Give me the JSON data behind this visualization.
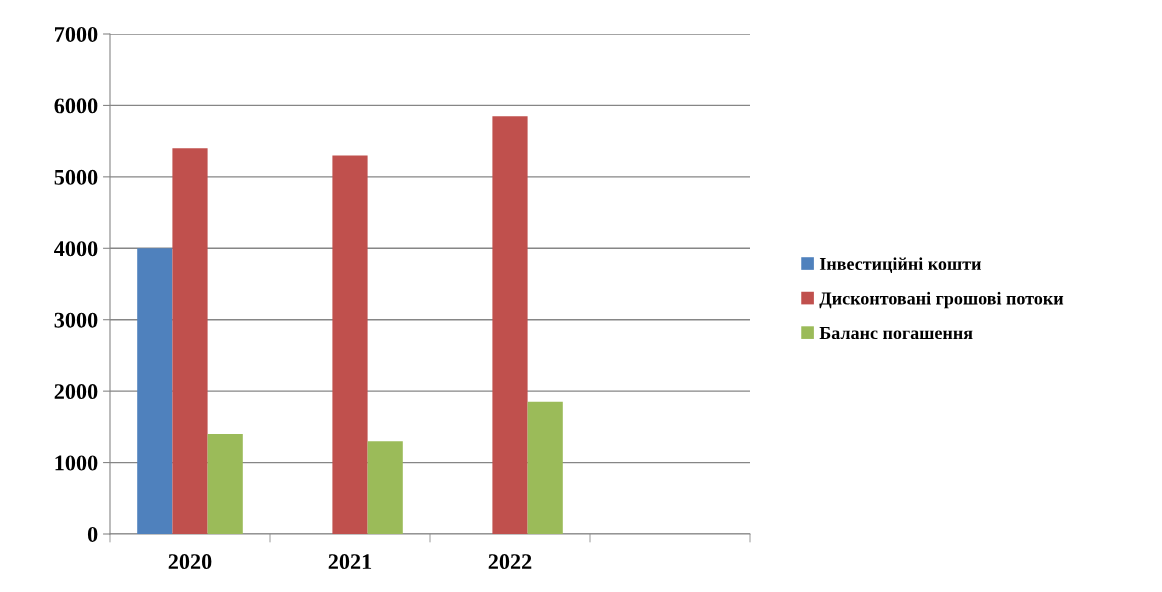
{
  "chart_data": {
    "type": "bar",
    "categories": [
      "2020",
      "2021",
      "2022",
      null
    ],
    "series": [
      {
        "name": "Інвестиційні кошти",
        "color": "#4f81bd",
        "values": [
          4000,
          null,
          null,
          null
        ]
      },
      {
        "name": "Дисконтовані грошові потоки",
        "color": "#c0504d",
        "values": [
          5400,
          5300,
          5850,
          null
        ]
      },
      {
        "name": "Баланс погашення",
        "color": "#9bbb59",
        "values": [
          1400,
          1300,
          1850,
          null
        ]
      }
    ],
    "ylim": [
      0,
      7000
    ],
    "yticks": [
      0,
      1000,
      2000,
      3000,
      4000,
      5000,
      6000,
      7000
    ],
    "grid": "y",
    "legend": "right"
  }
}
